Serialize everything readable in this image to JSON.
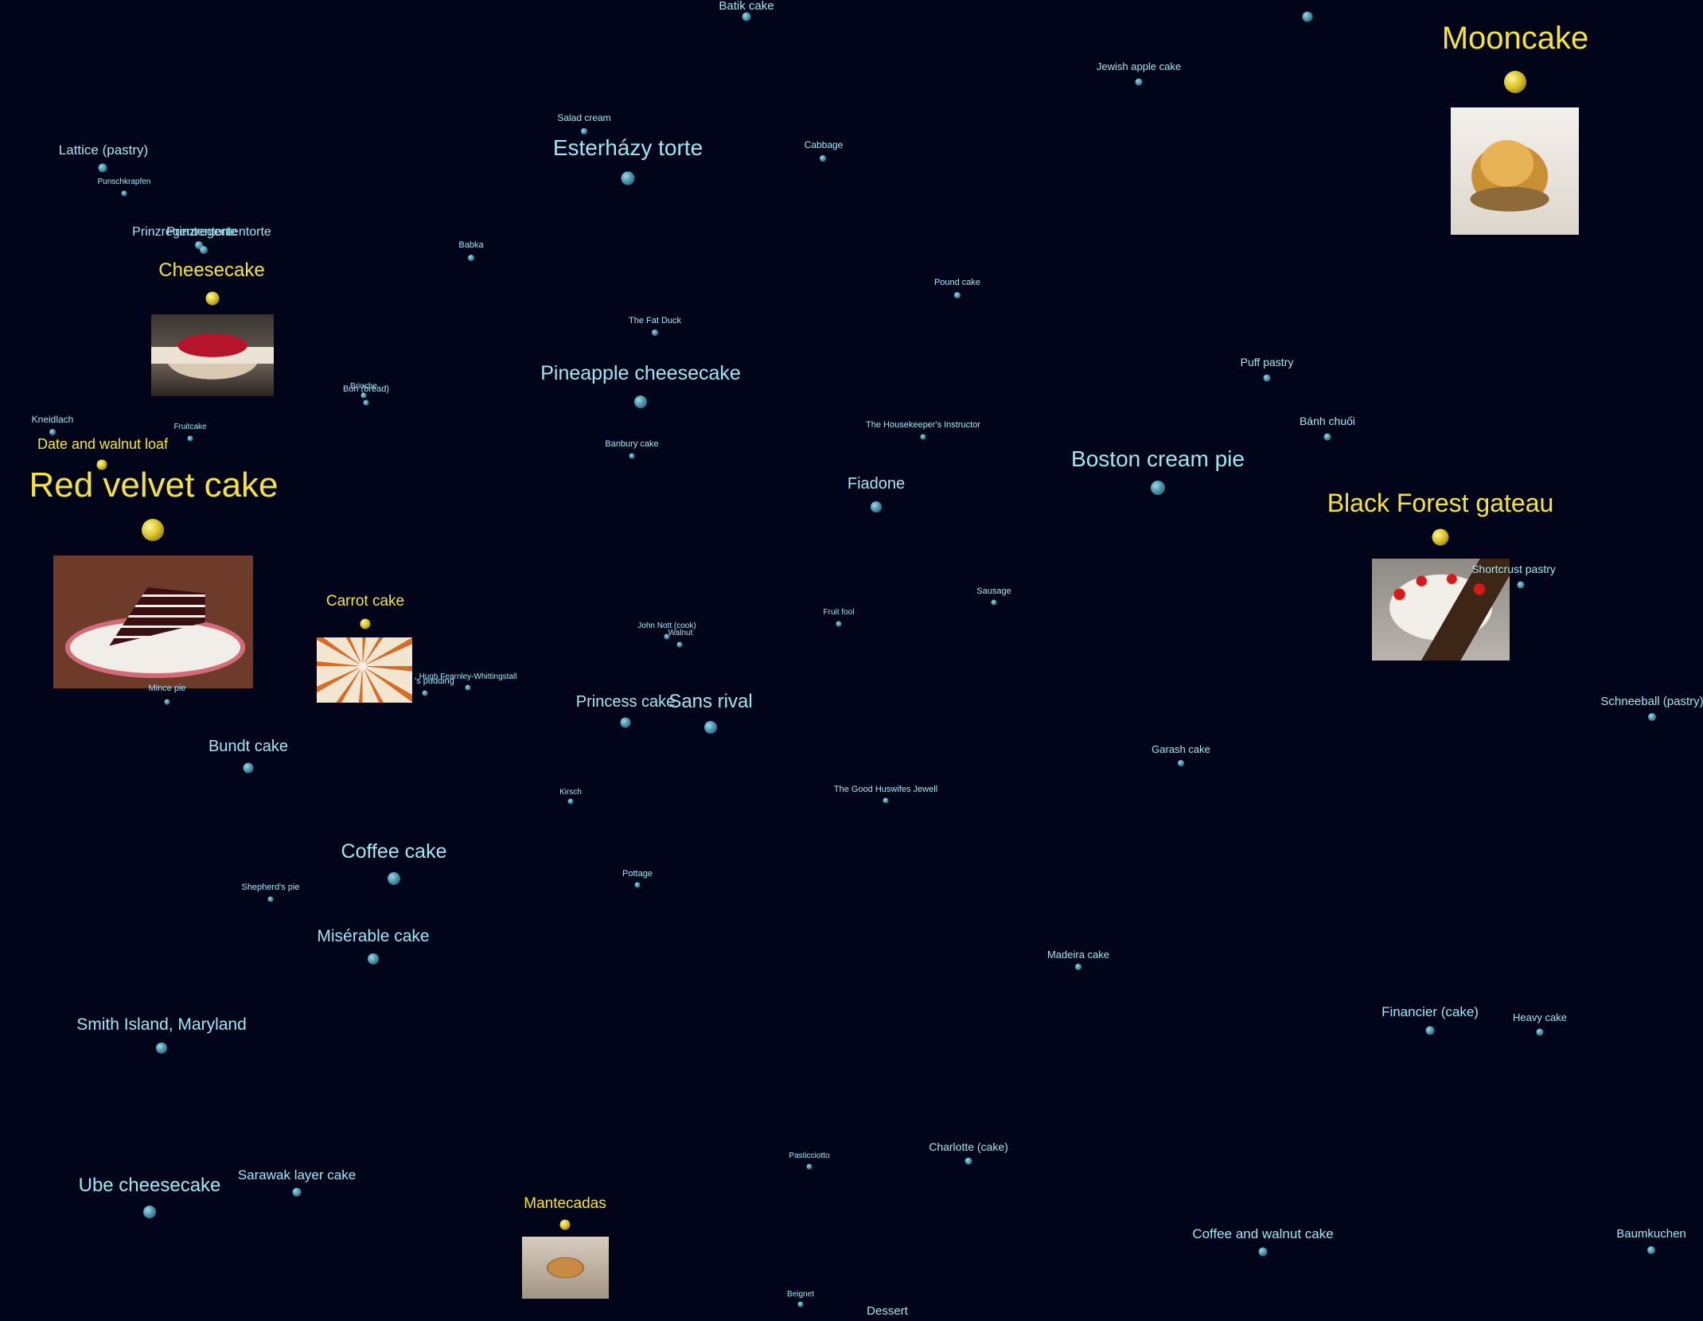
{
  "graph": {
    "nodes": [
      {
        "id": "batik-cake",
        "label": "Batik cake"
      },
      {
        "id": "unlabeled-top",
        "label": ""
      },
      {
        "id": "mooncake",
        "label": "Mooncake",
        "highlight": true,
        "image": "mooncake"
      },
      {
        "id": "jewish-apple-cake",
        "label": "Jewish apple cake"
      },
      {
        "id": "salad-cream",
        "label": "Salad cream"
      },
      {
        "id": "lattice-pastry",
        "label": "Lattice (pastry)"
      },
      {
        "id": "esterhazy-torte",
        "label": "Esterházy torte"
      },
      {
        "id": "cabbage",
        "label": "Cabbage"
      },
      {
        "id": "punschkrapfen",
        "label": "Punschkrapfen"
      },
      {
        "id": "prinzregententorte-a",
        "label": "Prinzregententorte"
      },
      {
        "id": "prinzregententorte-b",
        "label": "Prinzregententorte"
      },
      {
        "id": "babka",
        "label": "Babka"
      },
      {
        "id": "cheesecake",
        "label": "Cheesecake",
        "highlight": true,
        "image": "cheesecake"
      },
      {
        "id": "pound-cake",
        "label": "Pound cake"
      },
      {
        "id": "the-fat-duck",
        "label": "The Fat Duck"
      },
      {
        "id": "puff-pastry",
        "label": "Puff pastry"
      },
      {
        "id": "pineapple-cheesecake",
        "label": "Pineapple cheesecake"
      },
      {
        "id": "brioche",
        "label": "Brioche"
      },
      {
        "id": "bun-bread",
        "label": "Bun (bread)"
      },
      {
        "id": "kneidlach",
        "label": "Kneidlach"
      },
      {
        "id": "fruitcake",
        "label": "Fruitcake"
      },
      {
        "id": "banh-chuoi",
        "label": "Bánh chuối"
      },
      {
        "id": "housekeepers-instructor",
        "label": "The Housekeeper's Instructor"
      },
      {
        "id": "banbury-cake",
        "label": "Banbury cake"
      },
      {
        "id": "date-walnut-loaf",
        "label": "Date and walnut loaf",
        "highlight": true
      },
      {
        "id": "boston-cream-pie",
        "label": "Boston cream pie"
      },
      {
        "id": "red-velvet-cake",
        "label": "Red velvet cake",
        "highlight": true,
        "image": "red-velvet"
      },
      {
        "id": "fiadone",
        "label": "Fiadone"
      },
      {
        "id": "black-forest-gateau",
        "label": "Black Forest gateau",
        "highlight": true,
        "image": "black-forest"
      },
      {
        "id": "shortcrust-pastry",
        "label": "Shortcrust pastry"
      },
      {
        "id": "carrot-cake",
        "label": "Carrot cake",
        "highlight": true,
        "image": "carrot-cake"
      },
      {
        "id": "sausage",
        "label": "Sausage"
      },
      {
        "id": "fruit-fool",
        "label": "Fruit fool"
      },
      {
        "id": "john-nott",
        "label": "John Nott (cook)"
      },
      {
        "id": "walnut",
        "label": "Walnut"
      },
      {
        "id": "hugh-fearnley",
        "label": "Hugh Fearnley-Whittingstall"
      },
      {
        "id": "pudding",
        "label": "'s pudding"
      },
      {
        "id": "mince-pie",
        "label": "Mince pie"
      },
      {
        "id": "princess-cake",
        "label": "Princess cake"
      },
      {
        "id": "sans-rival",
        "label": "Sans rival"
      },
      {
        "id": "schneeball",
        "label": "Schneeball (pastry)"
      },
      {
        "id": "bundt-cake",
        "label": "Bundt cake"
      },
      {
        "id": "garash-cake",
        "label": "Garash cake"
      },
      {
        "id": "kirsch",
        "label": "Kirsch"
      },
      {
        "id": "good-huswifes-jewell",
        "label": "The Good Huswifes Jewell"
      },
      {
        "id": "coffee-cake",
        "label": "Coffee cake"
      },
      {
        "id": "pottage",
        "label": "Pottage"
      },
      {
        "id": "shepherds-pie",
        "label": "Shepherd's pie"
      },
      {
        "id": "miserable-cake",
        "label": "Misérable cake"
      },
      {
        "id": "madeira-cake",
        "label": "Madeira cake"
      },
      {
        "id": "smith-island",
        "label": "Smith Island, Maryland"
      },
      {
        "id": "financier",
        "label": "Financier (cake)"
      },
      {
        "id": "heavy-cake",
        "label": "Heavy cake"
      },
      {
        "id": "pasticciotto",
        "label": "Pasticciotto"
      },
      {
        "id": "charlotte",
        "label": "Charlotte (cake)"
      },
      {
        "id": "sarawak-layer-cake",
        "label": "Sarawak layer cake"
      },
      {
        "id": "ube-cheesecake",
        "label": "Ube cheesecake"
      },
      {
        "id": "mantecadas",
        "label": "Mantecadas",
        "highlight": true,
        "image": "mantecadas"
      },
      {
        "id": "coffee-walnut-cake",
        "label": "Coffee and walnut cake"
      },
      {
        "id": "baumkuchen",
        "label": "Baumkuchen"
      },
      {
        "id": "beignet",
        "label": "Beignet"
      },
      {
        "id": "dessert",
        "label": "Dessert"
      }
    ]
  }
}
